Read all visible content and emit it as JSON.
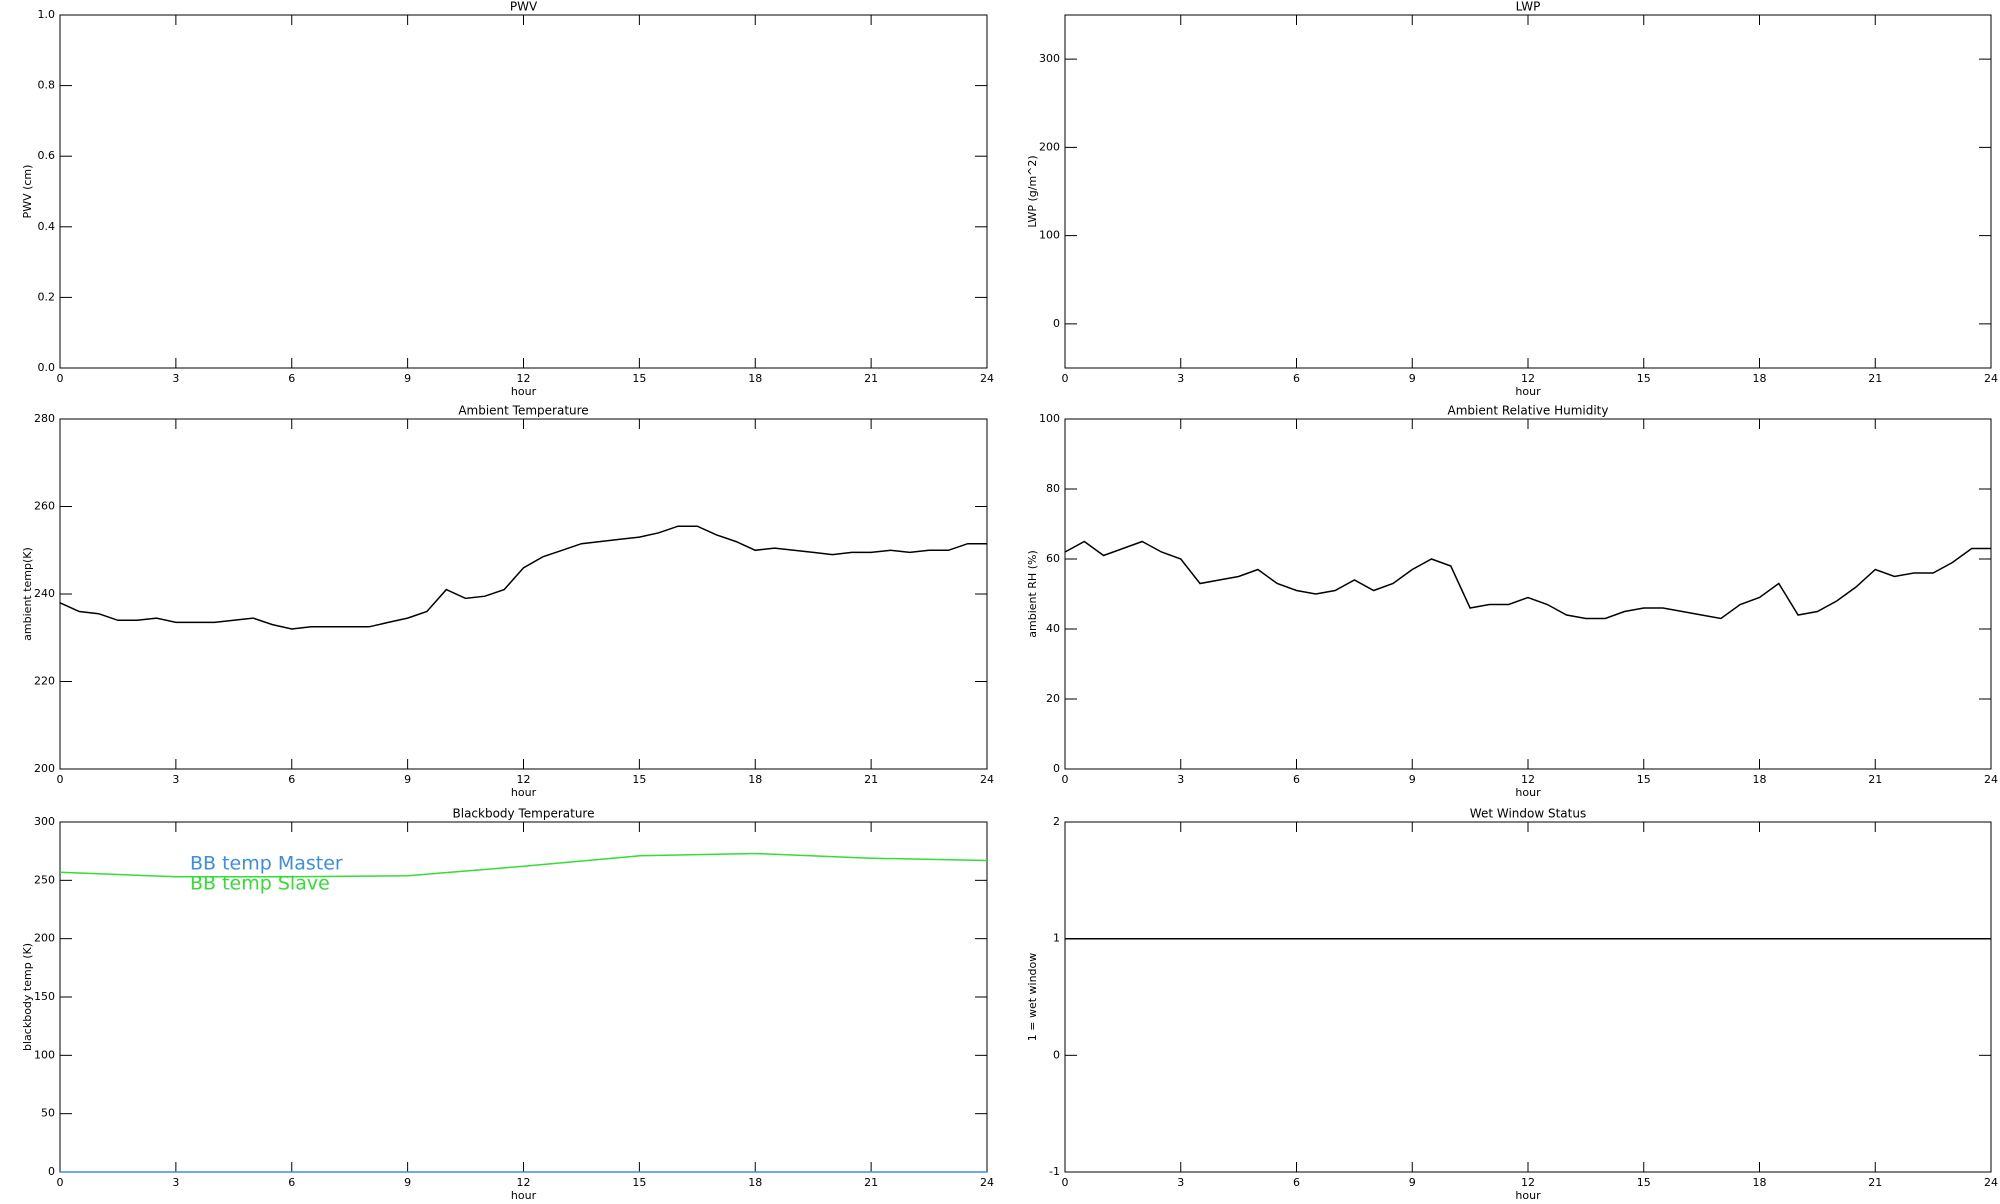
{
  "chart_data": [
    {
      "type": "line",
      "title": "PWV",
      "xlabel": "hour",
      "ylabel": "PWV (cm)",
      "xlim": [
        0,
        24
      ],
      "xticks": [
        0,
        3,
        6,
        9,
        12,
        15,
        18,
        21,
        24
      ],
      "ylim": [
        0,
        1
      ],
      "yticks": [
        {
          "value": 0,
          "label": "0.0"
        },
        0.2,
        0.4,
        0.6,
        0.8,
        {
          "value": 1,
          "label": "1.0"
        }
      ],
      "series": []
    },
    {
      "type": "line",
      "title": "LWP",
      "xlabel": "hour",
      "ylabel": "LWP (g/m^2)",
      "xlim": [
        0,
        24
      ],
      "xticks": [
        0,
        3,
        6,
        9,
        12,
        15,
        18,
        21,
        24
      ],
      "ylim": [
        -50,
        350
      ],
      "yticks": [
        0,
        100,
        200,
        300
      ],
      "series": []
    },
    {
      "type": "line",
      "title": "Ambient Temperature",
      "xlabel": "hour",
      "ylabel": "ambient temp(K)",
      "xlim": [
        0,
        24
      ],
      "xticks": [
        0,
        3,
        6,
        9,
        12,
        15,
        18,
        21,
        24
      ],
      "ylim": [
        200,
        280
      ],
      "yticks": [
        200,
        220,
        240,
        260,
        280
      ],
      "series": [
        {
          "color": "#000000",
          "x": [
            0,
            0.5,
            1,
            1.5,
            2,
            2.5,
            3,
            3.5,
            4,
            4.5,
            5,
            5.5,
            6,
            6.5,
            7,
            7.5,
            8,
            8.5,
            9,
            9.5,
            10,
            10.5,
            11,
            11.5,
            12,
            12.5,
            13,
            13.5,
            14,
            14.5,
            15,
            15.5,
            16,
            16.5,
            17,
            17.5,
            18,
            18.5,
            19,
            19.5,
            20,
            20.5,
            21,
            21.5,
            22,
            22.5,
            23,
            23.5,
            24
          ],
          "values": [
            238,
            236,
            235.5,
            234,
            234,
            234.5,
            233.5,
            233.5,
            233.5,
            234,
            234.5,
            233,
            232,
            232.5,
            232.5,
            232.5,
            232.5,
            233.5,
            234.5,
            236,
            241,
            239,
            239.5,
            241,
            246,
            248.5,
            250,
            251.5,
            252,
            252.5,
            253,
            254,
            255.5,
            255.5,
            253.5,
            252,
            250,
            250.5,
            250,
            249.5,
            249,
            249.5,
            249.5,
            250,
            249.5,
            250,
            250,
            251.5,
            251.5
          ]
        }
      ]
    },
    {
      "type": "line",
      "title": "Ambient Relative Humidity",
      "xlabel": "hour",
      "ylabel": "ambient RH (%)",
      "xlim": [
        0,
        24
      ],
      "xticks": [
        0,
        3,
        6,
        9,
        12,
        15,
        18,
        21,
        24
      ],
      "ylim": [
        0,
        100
      ],
      "yticks": [
        0,
        20,
        40,
        60,
        80,
        100
      ],
      "series": [
        {
          "color": "#000000",
          "x": [
            0,
            0.5,
            1,
            1.5,
            2,
            2.5,
            3,
            3.5,
            4,
            4.5,
            5,
            5.5,
            6,
            6.5,
            7,
            7.5,
            8,
            8.5,
            9,
            9.5,
            10,
            10.5,
            11,
            11.5,
            12,
            12.5,
            13,
            13.5,
            14,
            14.5,
            15,
            15.5,
            16,
            16.5,
            17,
            17.5,
            18,
            18.5,
            19,
            19.5,
            20,
            20.5,
            21,
            21.5,
            22,
            22.5,
            23,
            23.5,
            24
          ],
          "values": [
            62,
            65,
            61,
            63,
            65,
            62,
            60,
            53,
            54,
            55,
            57,
            53,
            51,
            50,
            51,
            54,
            51,
            53,
            57,
            60,
            58,
            46,
            47,
            47,
            49,
            47,
            44,
            43,
            43,
            45,
            46,
            46,
            45,
            44,
            43,
            47,
            49,
            53,
            44,
            45,
            48,
            52,
            57,
            55,
            56,
            56,
            59,
            63,
            63
          ]
        }
      ]
    },
    {
      "type": "line",
      "title": "Blackbody Temperature",
      "xlabel": "hour",
      "ylabel": "blackbody temp (K)",
      "xlim": [
        0,
        24
      ],
      "xticks": [
        0,
        3,
        6,
        9,
        12,
        15,
        18,
        21,
        24
      ],
      "ylim": [
        0,
        300
      ],
      "yticks": [
        0,
        50,
        100,
        150,
        200,
        250,
        300
      ],
      "legend": "upper left",
      "series": [
        {
          "name": "BB temp Master",
          "color": "#3a8ee6",
          "x": [
            0,
            24
          ],
          "values": [
            0,
            0
          ]
        },
        {
          "name": "BB temp Slave",
          "color": "#33dd33",
          "x": [
            0,
            3,
            6,
            9,
            12,
            15,
            18,
            21,
            24
          ],
          "values": [
            257,
            253,
            253,
            254,
            262,
            271,
            273,
            269,
            267
          ]
        }
      ]
    },
    {
      "type": "line",
      "title": "Wet Window Status",
      "xlabel": "hour",
      "ylabel": "1 = wet window",
      "xlim": [
        0,
        24
      ],
      "xticks": [
        0,
        3,
        6,
        9,
        12,
        15,
        18,
        21,
        24
      ],
      "ylim": [
        -1,
        2
      ],
      "yticks": [
        -1,
        0,
        1,
        2
      ],
      "series": [
        {
          "color": "#000000",
          "x": [
            0,
            24
          ],
          "values": [
            1,
            1
          ]
        }
      ]
    }
  ]
}
